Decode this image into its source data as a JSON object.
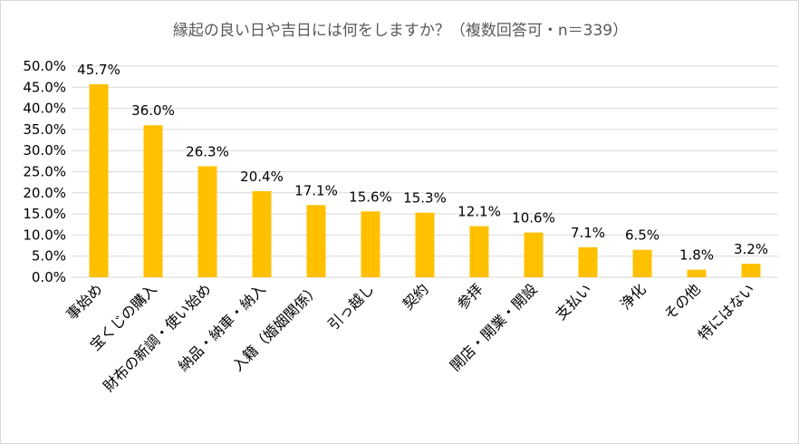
{
  "chart_data": {
    "type": "bar",
    "title": "縁起の良い日や吉日には何をしますか？（複数回答可・n＝339）",
    "categories": [
      "事始め",
      "宝くじの購入",
      "財布の新調・使い始め",
      "納品・納車・納入",
      "入籍（婚姻関係）",
      "引っ越し",
      "契約",
      "参拝",
      "開店・開業・開設",
      "支払い",
      "浄化",
      "その他",
      "特にはない"
    ],
    "values": [
      45.7,
      36.0,
      26.3,
      20.4,
      17.1,
      15.6,
      15.3,
      12.1,
      10.6,
      7.1,
      6.5,
      1.8,
      3.2
    ],
    "data_labels": [
      "45.7%",
      "36.0%",
      "26.3%",
      "20.4%",
      "17.1%",
      "15.6%",
      "15.3%",
      "12.1%",
      "10.6%",
      "7.1%",
      "6.5%",
      "1.8%",
      "3.2%"
    ],
    "yticks": [
      "0.0%",
      "5.0%",
      "10.0%",
      "15.0%",
      "20.0%",
      "25.0%",
      "30.0%",
      "35.0%",
      "40.0%",
      "45.0%",
      "50.0%"
    ],
    "ylim": [
      0,
      50
    ],
    "grid": true,
    "legend": "none",
    "bar_color": "#ffc000"
  }
}
